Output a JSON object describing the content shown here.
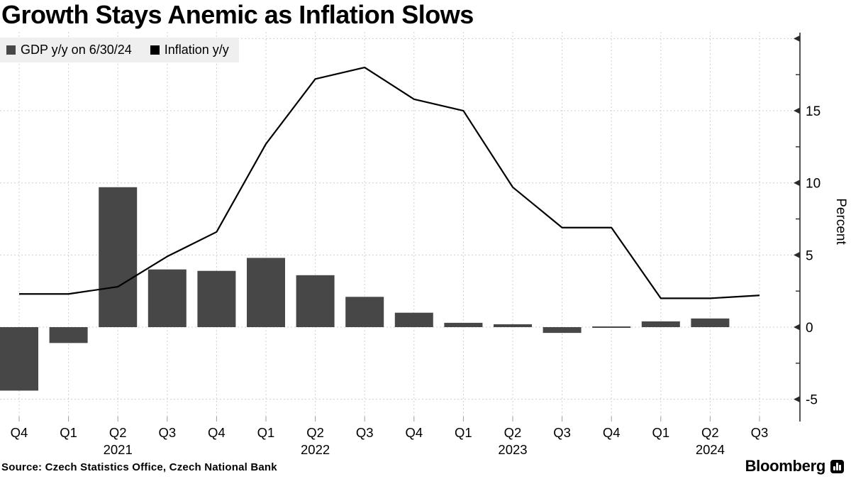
{
  "title": "Growth Stays Anemic as Inflation Slows",
  "legend": {
    "background": "#efefef",
    "items": [
      {
        "label": "GDP y/y on 6/30/24",
        "swatch_color": "#474747"
      },
      {
        "label": "Inflation y/y",
        "swatch_color": "#000000"
      }
    ]
  },
  "source": "Source: Czech Statistics Office, Czech National Bank",
  "branding": {
    "wordmark": "Bloomberg",
    "logo_icon": "bloomberg-bar-chart-icon"
  },
  "chart_data": {
    "type": "combo",
    "categories": [
      "Q4 2020",
      "Q1 2021",
      "Q2 2021",
      "Q3 2021",
      "Q4 2021",
      "Q1 2022",
      "Q2 2022",
      "Q3 2022",
      "Q4 2022",
      "Q1 2023",
      "Q2 2023",
      "Q3 2023",
      "Q4 2023",
      "Q1 2024",
      "Q2 2024",
      "Q3 2024"
    ],
    "x_tick_labels": [
      "Q4",
      "Q1",
      "Q2",
      "Q3",
      "Q4",
      "Q1",
      "Q2",
      "Q3",
      "Q4",
      "Q1",
      "Q2",
      "Q3",
      "Q4",
      "Q1",
      "Q2",
      "Q3"
    ],
    "x_year_labels": [
      {
        "index": 2,
        "label": "2021"
      },
      {
        "index": 6,
        "label": "2022"
      },
      {
        "index": 10,
        "label": "2023"
      },
      {
        "index": 14,
        "label": "2024"
      }
    ],
    "series": [
      {
        "name": "GDP y/y on 6/30/24",
        "type": "bar",
        "color": "#474747",
        "values": [
          -4.4,
          -1.1,
          9.7,
          4.0,
          3.9,
          4.8,
          3.6,
          2.1,
          1.0,
          0.3,
          0.2,
          -0.4,
          0.0,
          0.4,
          0.6,
          null
        ]
      },
      {
        "name": "Inflation y/y",
        "type": "line",
        "color": "#000000",
        "values": [
          2.3,
          2.3,
          2.8,
          4.9,
          6.6,
          12.7,
          17.2,
          18.0,
          15.8,
          15.0,
          9.7,
          6.9,
          6.9,
          2.0,
          2.0,
          2.2
        ]
      }
    ],
    "ylabel": "Percent",
    "ylim": [
      -6.5,
      20.5
    ],
    "y_axis_side": "right",
    "yticks_labeled": [
      15,
      10,
      5,
      0,
      -5
    ],
    "yticks_major": [
      20,
      15,
      10,
      5,
      0,
      -5
    ],
    "yticks_minor": [
      17.5,
      12.5,
      7.5,
      2.5,
      -2.5
    ],
    "grid": true,
    "grid_color": "#cfcfcf",
    "axis_color": "#2b2b2b",
    "legend_position": "top-left"
  }
}
